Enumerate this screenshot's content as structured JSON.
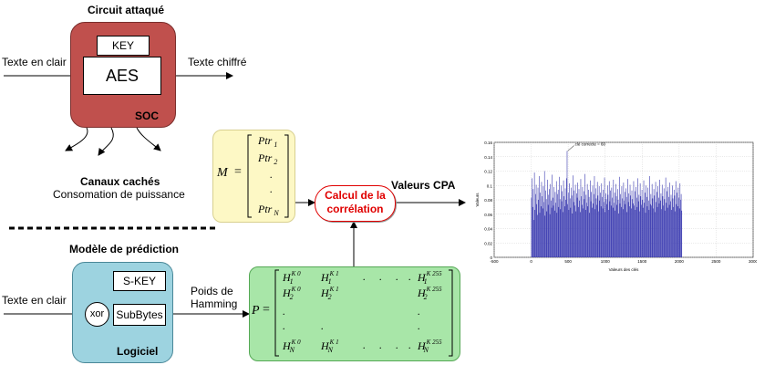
{
  "attacked_circuit": {
    "title": "Circuit attaqué",
    "key_label": "KEY",
    "aes_label": "AES",
    "soc_label": "SOC",
    "input_label": "Texte en clair",
    "output_label": "Texte chiffré",
    "fill_color": "#c0504d"
  },
  "side_channels": {
    "title": "Canaux cachés",
    "subtitle": "Consomation de puissance"
  },
  "measure_matrix": {
    "lhs": "M",
    "eq": "=",
    "rows": [
      {
        "base": "Ptr",
        "index": "1"
      },
      {
        "base": "Ptr",
        "index": "2"
      },
      {
        "base": ".",
        "index": ""
      },
      {
        "base": ".",
        "index": ""
      },
      {
        "base": "Ptr",
        "index": "N"
      }
    ],
    "fill_color": "#fdf8c5"
  },
  "correlation": {
    "label_line1": "Calcul de la",
    "label_line2": "corrélation",
    "text_color": "#e00000"
  },
  "cpa_output": {
    "label": "Valeurs CPA"
  },
  "prediction_model": {
    "title": "Modèle de prédiction",
    "skey_label": "S-KEY",
    "xor_label": "xor",
    "subbytes_label": "SubBytes",
    "software_label": "Logiciel",
    "input_label": "Texte en clair",
    "hamming_line1": "Poids de",
    "hamming_line2": "Hamming",
    "fill_color": "#9dd3e0"
  },
  "prediction_matrix": {
    "lhs": "P",
    "eq": "=",
    "rows": [
      [
        "H",
        "1",
        "K 0",
        "H",
        "1",
        "K 1",
        ".",
        ".",
        ".",
        ".",
        "H",
        "1",
        "K 255"
      ],
      [
        "H",
        "2",
        "K 0",
        "H",
        "2",
        "K 1",
        "",
        "",
        "",
        "",
        "H",
        "2",
        "K 255"
      ],
      [
        ".",
        "",
        "",
        "",
        "",
        "",
        "",
        "",
        "",
        "",
        ".",
        "",
        ""
      ],
      [
        ".",
        "",
        "",
        ".",
        "",
        "",
        "",
        "",
        "",
        "",
        ".",
        "",
        ""
      ],
      [
        "H",
        "N",
        "K 0",
        "H",
        "N",
        "K 1",
        ".",
        ".",
        ".",
        ".",
        "H",
        "N",
        "K 255"
      ]
    ],
    "fill_color": "#a8e6a8"
  },
  "chart_data": {
    "type": "bar",
    "annotation": "clé correcte = 60",
    "xlabel": "Valeurs des clés",
    "ylabel": "Valeurs",
    "xlim": [
      -500,
      3000
    ],
    "ylim": [
      0,
      0.16
    ],
    "xticks": [
      "-500",
      "0",
      "500",
      "1000",
      "1500",
      "2000",
      "2500",
      "3000"
    ],
    "yticks": [
      "0",
      "0.02",
      "0.04",
      "0.06",
      "0.08",
      "0.1",
      "0.12",
      "0.14",
      "0.16"
    ],
    "bar_color": "#3b3bb0",
    "grid": true,
    "highlight_index": 60,
    "highlight_value": 0.148,
    "values": [
      0.083,
      0.11,
      0.07,
      0.095,
      0.052,
      0.118,
      0.066,
      0.088,
      0.101,
      0.074,
      0.059,
      0.097,
      0.08,
      0.113,
      0.062,
      0.09,
      0.071,
      0.105,
      0.085,
      0.068,
      0.099,
      0.077,
      0.12,
      0.058,
      0.093,
      0.081,
      0.064,
      0.108,
      0.073,
      0.087,
      0.095,
      0.06,
      0.102,
      0.079,
      0.069,
      0.115,
      0.083,
      0.072,
      0.098,
      0.065,
      0.091,
      0.076,
      0.106,
      0.062,
      0.088,
      0.094,
      0.07,
      0.112,
      0.081,
      0.067,
      0.1,
      0.078,
      0.092,
      0.063,
      0.107,
      0.085,
      0.071,
      0.096,
      0.08,
      0.11,
      0.148,
      0.074,
      0.09,
      0.066,
      0.103,
      0.082,
      0.069,
      0.097,
      0.086,
      0.061,
      0.114,
      0.077,
      0.093,
      0.072,
      0.101,
      0.064,
      0.089,
      0.083,
      0.104,
      0.07,
      0.095,
      0.079,
      0.063,
      0.109,
      0.085,
      0.073,
      0.098,
      0.068,
      0.092,
      0.081,
      0.116,
      0.066,
      0.087,
      0.076,
      0.102,
      0.071,
      0.094,
      0.084,
      0.062,
      0.107,
      0.078,
      0.091,
      0.069,
      0.1,
      0.075,
      0.088,
      0.113,
      0.067,
      0.096,
      0.082,
      0.073,
      0.105,
      0.086,
      0.064,
      0.099,
      0.079,
      0.09,
      0.071,
      0.103,
      0.084,
      0.068,
      0.094,
      0.077,
      0.111,
      0.063,
      0.089,
      0.081,
      0.074,
      0.1,
      0.087,
      0.066,
      0.106,
      0.078,
      0.093,
      0.072,
      0.097,
      0.083,
      0.069,
      0.108,
      0.076,
      0.09,
      0.065,
      0.102,
      0.085,
      0.073,
      0.095,
      0.08,
      0.061,
      0.112,
      0.075,
      0.088,
      0.07,
      0.099,
      0.082,
      0.067,
      0.104,
      0.079,
      0.091,
      0.074,
      0.096,
      0.084,
      0.063,
      0.109,
      0.077,
      0.089,
      0.071,
      0.101,
      0.086,
      0.068,
      0.093,
      0.081,
      0.075,
      0.106,
      0.072,
      0.092,
      0.066,
      0.098,
      0.083,
      0.07,
      0.11,
      0.078,
      0.087,
      0.064,
      0.103,
      0.085,
      0.073,
      0.094,
      0.08,
      0.069,
      0.107,
      0.076,
      0.09,
      0.062,
      0.1,
      0.084,
      0.071,
      0.097,
      0.079,
      0.066,
      0.113,
      0.074,
      0.088,
      0.072,
      0.102,
      0.082,
      0.068,
      0.095,
      0.086,
      0.063,
      0.105,
      0.077,
      0.091,
      0.07,
      0.099,
      0.083,
      0.075,
      0.108,
      0.079,
      0.089,
      0.067,
      0.101,
      0.085,
      0.072,
      0.096,
      0.081,
      0.065,
      0.111,
      0.076,
      0.092,
      0.069,
      0.098,
      0.084,
      0.073,
      0.104,
      0.078,
      0.087,
      0.066,
      0.1,
      0.082,
      0.07,
      0.094,
      0.086,
      0.064,
      0.106,
      0.074,
      0.09,
      0.071,
      0.097,
      0.083,
      0.068,
      0.103,
      0.08,
      0.088,
      0.065
    ]
  }
}
